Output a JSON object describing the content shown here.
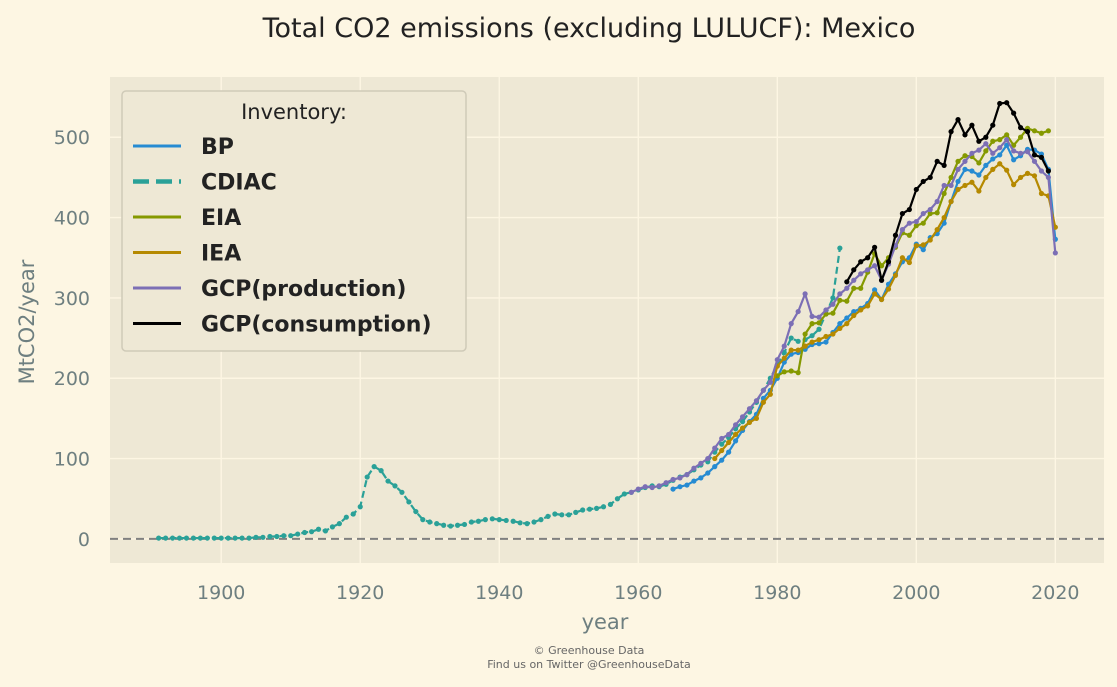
{
  "chart_data": {
    "type": "line",
    "title": "Total CO2 emissions (excluding LULUCF): Mexico",
    "xlabel": "year",
    "ylabel": "MtCO2/year",
    "xlim": [
      1884,
      2027
    ],
    "ylim": [
      -30,
      575
    ],
    "xticks": [
      1900,
      1920,
      1940,
      1960,
      1980,
      2000,
      2020
    ],
    "yticks": [
      0,
      100,
      200,
      300,
      400,
      500
    ],
    "grid": true,
    "zero_line": true,
    "legend": {
      "title": "Inventory:",
      "placement": "top-left"
    },
    "colors": {
      "background": "#fdf6e3",
      "plot_background": "#eee8d5",
      "grid": "#fdf6e3",
      "zero_line": "#808080"
    },
    "series": [
      {
        "name": "CDIAC",
        "color": "#2aa198",
        "dashed": true,
        "x": [
          1891,
          1892,
          1893,
          1894,
          1895,
          1896,
          1897,
          1898,
          1899,
          1900,
          1901,
          1902,
          1903,
          1904,
          1905,
          1906,
          1907,
          1908,
          1909,
          1910,
          1911,
          1912,
          1913,
          1914,
          1915,
          1916,
          1917,
          1918,
          1919,
          1920,
          1921,
          1922,
          1923,
          1924,
          1925,
          1926,
          1927,
          1928,
          1929,
          1930,
          1931,
          1932,
          1933,
          1934,
          1935,
          1936,
          1937,
          1938,
          1939,
          1940,
          1941,
          1942,
          1943,
          1944,
          1945,
          1946,
          1947,
          1948,
          1949,
          1950,
          1951,
          1952,
          1953,
          1954,
          1955,
          1956,
          1957,
          1958,
          1959,
          1960,
          1961,
          1962,
          1963,
          1964,
          1965,
          1966,
          1967,
          1968,
          1969,
          1970,
          1971,
          1972,
          1973,
          1974,
          1975,
          1976,
          1977,
          1978,
          1979,
          1980,
          1981,
          1982,
          1983,
          1984,
          1985,
          1986,
          1987,
          1988,
          1989
        ],
        "y": [
          1,
          1,
          1,
          1,
          1,
          1,
          1,
          1,
          1,
          1,
          1,
          1,
          1,
          1,
          2,
          2,
          3,
          3,
          4,
          4,
          6,
          8,
          9,
          12,
          10,
          15,
          19,
          27,
          31,
          40,
          77,
          90,
          85,
          72,
          66,
          58,
          46,
          34,
          24,
          21,
          19,
          17,
          16,
          17,
          18,
          21,
          22,
          24,
          25,
          24,
          23,
          22,
          20,
          19,
          21,
          24,
          28,
          31,
          30,
          30,
          33,
          36,
          37,
          38,
          40,
          43,
          50,
          56,
          58,
          61,
          64,
          66,
          65,
          68,
          73,
          77,
          80,
          86,
          92,
          96,
          108,
          118,
          126,
          137,
          146,
          158,
          170,
          185,
          200,
          216,
          232,
          250,
          246,
          248,
          253,
          261,
          280,
          300,
          362
        ]
      },
      {
        "name": "BP",
        "color": "#268bd2",
        "dashed": false,
        "x": [
          1965,
          1966,
          1967,
          1968,
          1969,
          1970,
          1971,
          1972,
          1973,
          1974,
          1975,
          1976,
          1977,
          1978,
          1979,
          1980,
          1981,
          1982,
          1983,
          1984,
          1985,
          1986,
          1987,
          1988,
          1989,
          1990,
          1991,
          1992,
          1993,
          1994,
          1995,
          1996,
          1997,
          1998,
          1999,
          2000,
          2001,
          2002,
          2003,
          2004,
          2005,
          2006,
          2007,
          2008,
          2009,
          2010,
          2011,
          2012,
          2013,
          2014,
          2015,
          2016,
          2017,
          2018,
          2019,
          2020
        ],
        "y": [
          62,
          65,
          67,
          72,
          76,
          82,
          90,
          98,
          108,
          122,
          135,
          146,
          155,
          175,
          185,
          200,
          220,
          230,
          232,
          236,
          242,
          243,
          245,
          257,
          268,
          275,
          283,
          287,
          293,
          310,
          298,
          317,
          330,
          345,
          350,
          367,
          360,
          375,
          380,
          393,
          420,
          445,
          460,
          458,
          453,
          465,
          473,
          478,
          490,
          472,
          477,
          485,
          484,
          479,
          460,
          373
        ]
      },
      {
        "name": "EIA",
        "color": "#859900",
        "dashed": false,
        "x": [
          1980,
          1981,
          1982,
          1983,
          1984,
          1985,
          1986,
          1987,
          1988,
          1989,
          1990,
          1991,
          1992,
          1993,
          1994,
          1995,
          1996,
          1997,
          1998,
          1999,
          2000,
          2001,
          2002,
          2003,
          2004,
          2005,
          2006,
          2007,
          2008,
          2009,
          2010,
          2011,
          2012,
          2013,
          2014,
          2015,
          2016,
          2017,
          2018,
          2019
        ],
        "y": [
          203,
          208,
          209,
          207,
          255,
          268,
          269,
          280,
          281,
          297,
          296,
          312,
          312,
          332,
          355,
          340,
          350,
          363,
          381,
          378,
          390,
          393,
          405,
          406,
          430,
          450,
          470,
          477,
          476,
          468,
          483,
          495,
          497,
          503,
          490,
          500,
          511,
          508,
          505,
          508
        ]
      },
      {
        "name": "IEA",
        "color": "#b58900",
        "dashed": false,
        "x": [
          1971,
          1972,
          1973,
          1974,
          1975,
          1976,
          1977,
          1978,
          1979,
          1980,
          1981,
          1982,
          1983,
          1984,
          1985,
          1986,
          1987,
          1988,
          1989,
          1990,
          1991,
          1992,
          1993,
          1994,
          1995,
          1996,
          1997,
          1998,
          1999,
          2000,
          2001,
          2002,
          2003,
          2004,
          2005,
          2006,
          2007,
          2008,
          2009,
          2010,
          2011,
          2012,
          2013,
          2014,
          2015,
          2016,
          2017,
          2018,
          2019,
          2020
        ],
        "y": [
          100,
          110,
          120,
          130,
          138,
          145,
          150,
          170,
          180,
          215,
          225,
          235,
          235,
          240,
          245,
          248,
          252,
          255,
          262,
          268,
          278,
          285,
          290,
          305,
          298,
          311,
          328,
          350,
          344,
          365,
          366,
          372,
          385,
          400,
          420,
          435,
          440,
          444,
          433,
          450,
          460,
          467,
          459,
          441,
          450,
          455,
          452,
          430,
          427,
          388
        ]
      },
      {
        "name": "GCP(production)",
        "color": "#7c6fb5",
        "dashed": false,
        "x": [
          1959,
          1960,
          1961,
          1962,
          1963,
          1964,
          1965,
          1966,
          1967,
          1968,
          1969,
          1970,
          1971,
          1972,
          1973,
          1974,
          1975,
          1976,
          1977,
          1978,
          1979,
          1980,
          1981,
          1982,
          1983,
          1984,
          1985,
          1986,
          1987,
          1988,
          1989,
          1990,
          1991,
          1992,
          1993,
          1994,
          1995,
          1996,
          1997,
          1998,
          1999,
          2000,
          2001,
          2002,
          2003,
          2004,
          2005,
          2006,
          2007,
          2008,
          2009,
          2010,
          2011,
          2012,
          2013,
          2014,
          2015,
          2016,
          2017,
          2018,
          2019,
          2020
        ],
        "y": [
          58,
          62,
          65,
          64,
          66,
          70,
          74,
          76,
          80,
          88,
          94,
          100,
          113,
          125,
          130,
          142,
          152,
          162,
          172,
          185,
          195,
          223,
          240,
          268,
          283,
          305,
          277,
          276,
          285,
          292,
          305,
          312,
          322,
          330,
          335,
          340,
          322,
          342,
          365,
          385,
          393,
          395,
          405,
          410,
          420,
          440,
          440,
          460,
          470,
          480,
          484,
          492,
          480,
          487,
          497,
          483,
          480,
          482,
          470,
          458,
          450,
          356
        ]
      },
      {
        "name": "GCP(consumption)",
        "color": "#000000",
        "dashed": false,
        "x": [
          1990,
          1991,
          1992,
          1993,
          1994,
          1995,
          1996,
          1997,
          1998,
          1999,
          2000,
          2001,
          2002,
          2003,
          2004,
          2005,
          2006,
          2007,
          2008,
          2009,
          2010,
          2011,
          2012,
          2013,
          2014,
          2015,
          2016,
          2017,
          2018,
          2019
        ],
        "y": [
          320,
          335,
          345,
          350,
          363,
          322,
          345,
          378,
          405,
          410,
          435,
          445,
          450,
          470,
          465,
          507,
          522,
          503,
          515,
          495,
          500,
          515,
          542,
          543,
          530,
          512,
          507,
          478,
          475,
          458
        ]
      }
    ],
    "legend_order": [
      "BP",
      "CDIAC",
      "EIA",
      "IEA",
      "GCP(production)",
      "GCP(consumption)"
    ]
  },
  "credits": {
    "line1": "© Greenhouse Data",
    "line2": "Find us on Twitter @GreenhouseData"
  }
}
